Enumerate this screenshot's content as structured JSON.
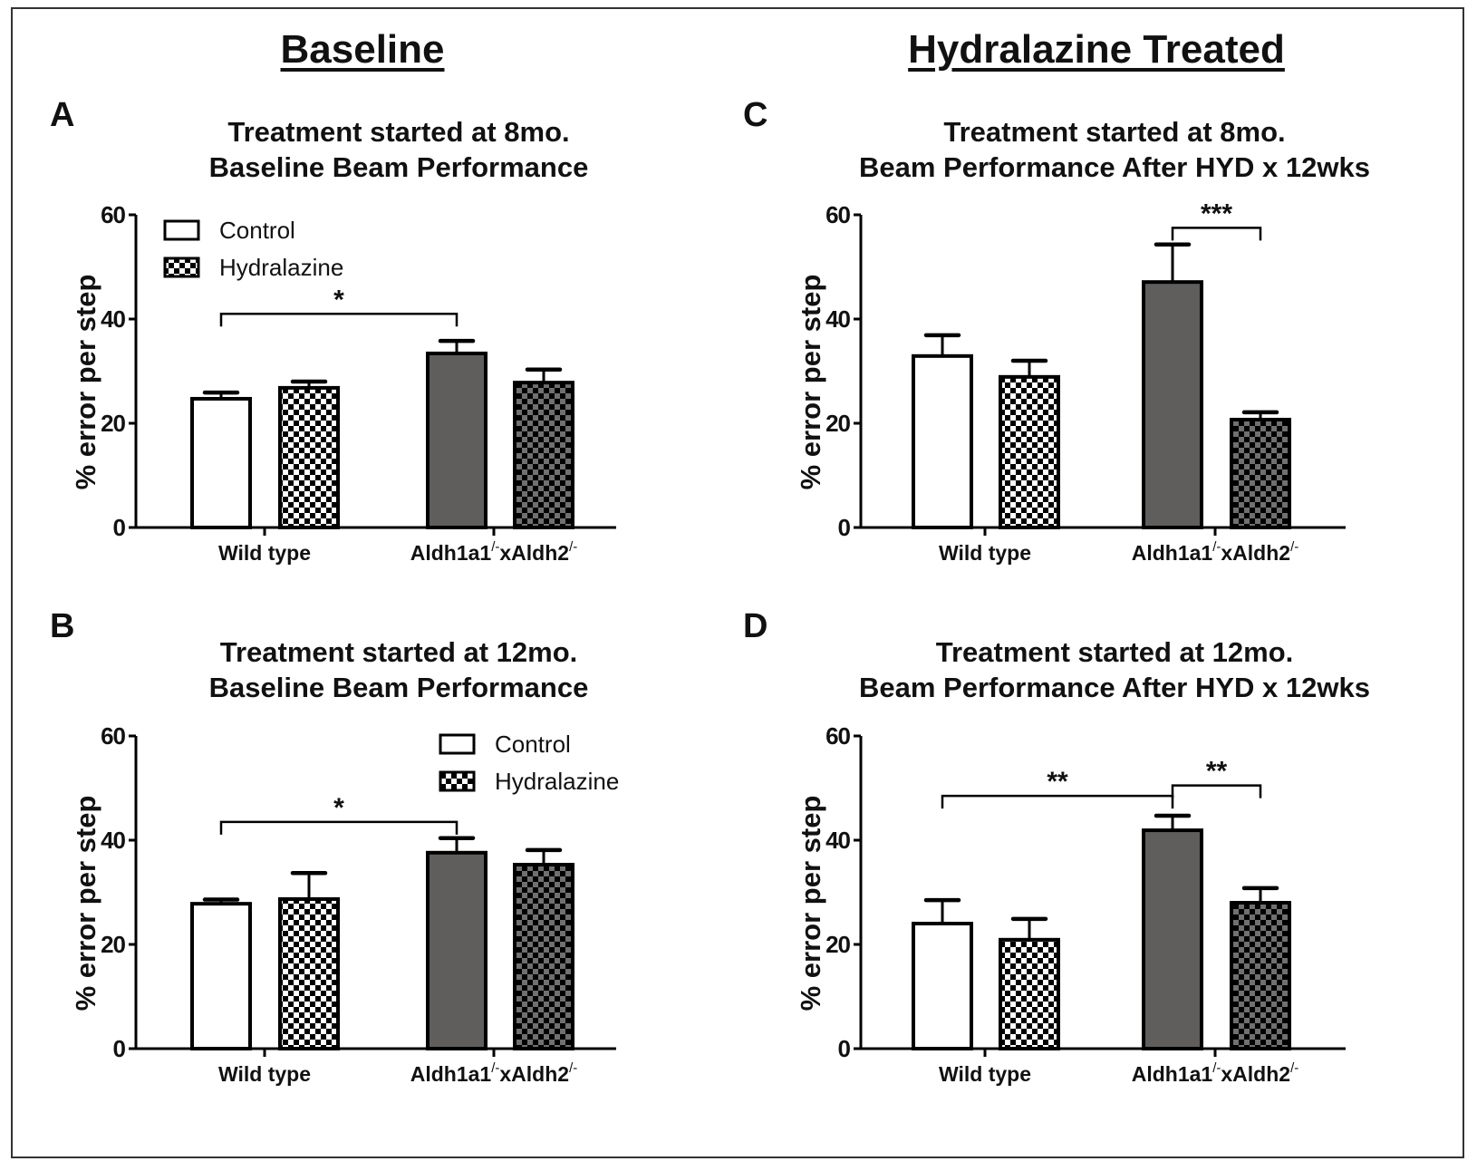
{
  "figure": {
    "section_titles": {
      "left": "Baseline",
      "right": "Hydralazine Treated"
    }
  },
  "chart_data": [
    {
      "id": "A",
      "type": "bar",
      "panel_label": "A",
      "title": "Treatment started at 8mo.",
      "subtitle": "Baseline Beam Performance",
      "xlabel": "",
      "ylabel": "% error per step",
      "ylim": [
        0,
        60
      ],
      "yticks": [
        0,
        20,
        40,
        60
      ],
      "grid": false,
      "categories": [
        "Wild type",
        "Aldh1a1-/-xAldh2-/-"
      ],
      "category_labels": [
        {
          "main": "Wild type",
          "parts": []
        },
        {
          "main": "",
          "parts": [
            "Aldh1a1",
            "/-",
            "xAldh2",
            "/-"
          ]
        }
      ],
      "series": [
        {
          "name": "Control",
          "values": [
            24.7,
            33.4
          ],
          "errors": [
            1.2,
            2.4
          ]
        },
        {
          "name": "Hydralazine",
          "values": [
            26.8,
            27.8
          ],
          "errors": [
            1.2,
            2.5
          ]
        }
      ],
      "legend": {
        "entries": [
          "Control",
          "Hydralazine"
        ],
        "position": "top-left"
      },
      "significance": [
        {
          "from": {
            "cat": 0,
            "series": 0
          },
          "to": {
            "cat": 1,
            "series": 0
          },
          "level": 41,
          "label": "*"
        }
      ]
    },
    {
      "id": "B",
      "type": "bar",
      "panel_label": "B",
      "title": "Treatment started at 12mo.",
      "subtitle": "Baseline Beam Performance",
      "xlabel": "",
      "ylabel": "% error per step",
      "ylim": [
        0,
        60
      ],
      "yticks": [
        0,
        20,
        40,
        60
      ],
      "grid": false,
      "categories": [
        "Wild type",
        "Aldh1a1-/-xAldh2-/-"
      ],
      "category_labels": [
        {
          "main": "Wild type",
          "parts": []
        },
        {
          "main": "",
          "parts": [
            "Aldh1a1",
            "/-",
            "xAldh2",
            "/-"
          ]
        }
      ],
      "series": [
        {
          "name": "Control",
          "values": [
            27.8,
            37.6
          ],
          "errors": [
            0.8,
            2.8
          ]
        },
        {
          "name": "Hydralazine",
          "values": [
            28.7,
            35.3
          ],
          "errors": [
            5.0,
            2.8
          ]
        }
      ],
      "legend": {
        "entries": [
          "Control",
          "Hydralazine"
        ],
        "position": "top-right"
      },
      "significance": [
        {
          "from": {
            "cat": 0,
            "series": 0
          },
          "to": {
            "cat": 1,
            "series": 0
          },
          "level": 43.5,
          "label": "*"
        }
      ]
    },
    {
      "id": "C",
      "type": "bar",
      "panel_label": "C",
      "title": "Treatment started at 8mo.",
      "subtitle": "Beam Performance After HYD x 12wks",
      "xlabel": "",
      "ylabel": "% error per step",
      "ylim": [
        0,
        60
      ],
      "yticks": [
        0,
        20,
        40,
        60
      ],
      "grid": false,
      "categories": [
        "Wild type",
        "Aldh1a1-/-xAldh2-/-"
      ],
      "category_labels": [
        {
          "main": "Wild type",
          "parts": []
        },
        {
          "main": "",
          "parts": [
            "Aldh1a1",
            "/-",
            "xAldh2",
            "/-"
          ]
        }
      ],
      "series": [
        {
          "name": "Control",
          "values": [
            32.9,
            47.1
          ],
          "errors": [
            4.0,
            7.2
          ]
        },
        {
          "name": "Hydralazine",
          "values": [
            28.9,
            20.7
          ],
          "errors": [
            3.1,
            1.4
          ]
        }
      ],
      "legend": null,
      "significance": [
        {
          "from": {
            "cat": 1,
            "series": 0
          },
          "to": {
            "cat": 1,
            "series": 1
          },
          "level": 57.5,
          "label": "***"
        }
      ]
    },
    {
      "id": "D",
      "type": "bar",
      "panel_label": "D",
      "title": "Treatment started at 12mo.",
      "subtitle": "Beam Performance After HYD x 12wks",
      "xlabel": "",
      "ylabel": "% error per step",
      "ylim": [
        0,
        60
      ],
      "yticks": [
        0,
        20,
        40,
        60
      ],
      "grid": false,
      "categories": [
        "Wild type",
        "Aldh1a1-/-xAldh2-/-"
      ],
      "category_labels": [
        {
          "main": "Wild type",
          "parts": []
        },
        {
          "main": "",
          "parts": [
            "Aldh1a1",
            "/-",
            "xAldh2",
            "/-"
          ]
        }
      ],
      "series": [
        {
          "name": "Control",
          "values": [
            24.0,
            41.9
          ],
          "errors": [
            4.5,
            2.8
          ]
        },
        {
          "name": "Hydralazine",
          "values": [
            20.9,
            28.0
          ],
          "errors": [
            4.0,
            2.8
          ]
        }
      ],
      "legend": null,
      "significance": [
        {
          "from": {
            "cat": 0,
            "series": 0
          },
          "to": {
            "cat": 1,
            "series": 0
          },
          "level": 48.5,
          "label": "**"
        },
        {
          "from": {
            "cat": 1,
            "series": 0
          },
          "to": {
            "cat": 1,
            "series": 1
          },
          "level": 50.5,
          "label": "**"
        }
      ]
    }
  ],
  "colors": {
    "control_fill": "#ffffff",
    "ko_control_fill": "#5f5e5c",
    "check_dark": "#000000",
    "check_light_wt": "#ffffff",
    "check_light_ko": "#707070",
    "stroke": "#000000"
  }
}
